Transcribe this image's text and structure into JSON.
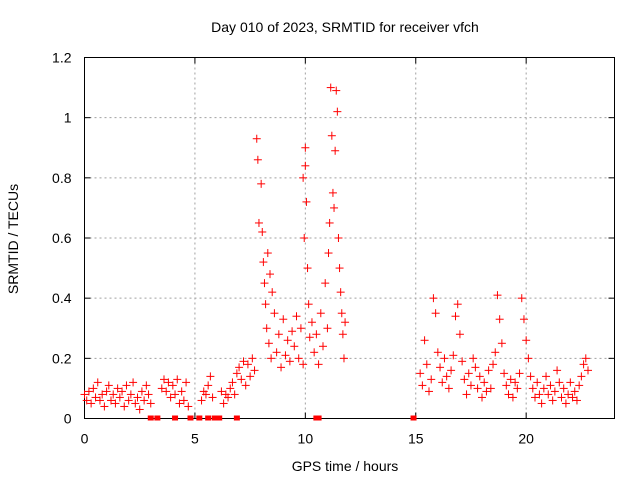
{
  "chart_data": {
    "type": "scatter",
    "title": "Day 010 of 2023, SRMTID for receiver vfch",
    "xlabel": "GPS time / hours",
    "ylabel": "SRMTID / TECUs",
    "xlim": [
      0,
      24
    ],
    "ylim": [
      0,
      1.2
    ],
    "grid": true,
    "marker": "+",
    "series_color": "#ff0000",
    "x_ticks": [
      0,
      5,
      10,
      15,
      20
    ],
    "y_ticks": [
      0,
      0.2,
      0.4,
      0.6,
      0.8,
      1,
      1.2
    ],
    "x_tick_labels": [
      "0",
      "5",
      "10",
      "15",
      "20"
    ],
    "y_tick_labels": [
      "0",
      "0.2",
      "0.4",
      "0.6",
      "0.8",
      "1",
      "1.2"
    ],
    "series": [
      {
        "name": "SRMTID",
        "points": [
          [
            0.0,
            0.08
          ],
          [
            0.1,
            0.06
          ],
          [
            0.2,
            0.09
          ],
          [
            0.3,
            0.05
          ],
          [
            0.4,
            0.1
          ],
          [
            0.5,
            0.07
          ],
          [
            0.6,
            0.12
          ],
          [
            0.7,
            0.06
          ],
          [
            0.8,
            0.08
          ],
          [
            0.9,
            0.04
          ],
          [
            1.0,
            0.09
          ],
          [
            1.1,
            0.11
          ],
          [
            1.2,
            0.06
          ],
          [
            1.3,
            0.08
          ],
          [
            1.4,
            0.05
          ],
          [
            1.5,
            0.1
          ],
          [
            1.6,
            0.07
          ],
          [
            1.7,
            0.09
          ],
          [
            1.8,
            0.04
          ],
          [
            1.9,
            0.11
          ],
          [
            2.0,
            0.06
          ],
          [
            2.1,
            0.08
          ],
          [
            2.2,
            0.12
          ],
          [
            2.3,
            0.05
          ],
          [
            2.4,
            0.07
          ],
          [
            2.5,
            0.03
          ],
          [
            2.6,
            0.09
          ],
          [
            2.7,
            0.06
          ],
          [
            2.8,
            0.11
          ],
          [
            2.9,
            0.08
          ],
          [
            3.0,
            0.05
          ],
          [
            3.5,
            0.1
          ],
          [
            3.6,
            0.13
          ],
          [
            3.7,
            0.09
          ],
          [
            3.8,
            0.12
          ],
          [
            3.9,
            0.07
          ],
          [
            4.0,
            0.11
          ],
          [
            4.1,
            0.08
          ],
          [
            4.2,
            0.13
          ],
          [
            4.3,
            0.05
          ],
          [
            4.4,
            0.09
          ],
          [
            4.5,
            0.06
          ],
          [
            4.6,
            0.12
          ],
          [
            4.7,
            0.04
          ],
          [
            5.3,
            0.06
          ],
          [
            5.4,
            0.09
          ],
          [
            5.5,
            0.08
          ],
          [
            5.6,
            0.11
          ],
          [
            5.7,
            0.14
          ],
          [
            5.8,
            0.07
          ],
          [
            6.2,
            0.09
          ],
          [
            6.3,
            0.05
          ],
          [
            6.4,
            0.08
          ],
          [
            6.5,
            0.07
          ],
          [
            6.6,
            0.1
          ],
          [
            6.7,
            0.12
          ],
          [
            6.8,
            0.08
          ],
          [
            6.9,
            0.15
          ],
          [
            7.0,
            0.17
          ],
          [
            7.1,
            0.13
          ],
          [
            7.2,
            0.19
          ],
          [
            7.3,
            0.11
          ],
          [
            7.4,
            0.18
          ],
          [
            7.5,
            0.14
          ],
          [
            7.6,
            0.2
          ],
          [
            7.7,
            0.16
          ],
          [
            7.8,
            0.93
          ],
          [
            7.85,
            0.86
          ],
          [
            7.9,
            0.65
          ],
          [
            8.0,
            0.78
          ],
          [
            8.05,
            0.62
          ],
          [
            8.1,
            0.52
          ],
          [
            8.15,
            0.45
          ],
          [
            8.2,
            0.38
          ],
          [
            8.25,
            0.3
          ],
          [
            8.3,
            0.55
          ],
          [
            8.35,
            0.25
          ],
          [
            8.4,
            0.48
          ],
          [
            8.45,
            0.2
          ],
          [
            8.5,
            0.42
          ],
          [
            8.6,
            0.35
          ],
          [
            8.7,
            0.22
          ],
          [
            8.8,
            0.28
          ],
          [
            8.9,
            0.17
          ],
          [
            9.0,
            0.33
          ],
          [
            9.1,
            0.21
          ],
          [
            9.2,
            0.26
          ],
          [
            9.3,
            0.19
          ],
          [
            9.4,
            0.29
          ],
          [
            9.5,
            0.24
          ],
          [
            9.6,
            0.34
          ],
          [
            9.7,
            0.2
          ],
          [
            9.8,
            0.3
          ],
          [
            9.9,
            0.18
          ],
          [
            9.9,
            0.8
          ],
          [
            9.95,
            0.6
          ],
          [
            10.0,
            0.9
          ],
          [
            10.0,
            0.84
          ],
          [
            10.05,
            0.72
          ],
          [
            10.1,
            0.5
          ],
          [
            10.15,
            0.38
          ],
          [
            10.2,
            0.27
          ],
          [
            10.3,
            0.32
          ],
          [
            10.4,
            0.22
          ],
          [
            10.5,
            0.28
          ],
          [
            10.6,
            0.18
          ],
          [
            10.7,
            0.35
          ],
          [
            10.8,
            0.24
          ],
          [
            10.9,
            0.45
          ],
          [
            11.0,
            0.3
          ],
          [
            11.05,
            0.55
          ],
          [
            11.1,
            0.65
          ],
          [
            11.15,
            1.1
          ],
          [
            11.2,
            0.94
          ],
          [
            11.25,
            0.75
          ],
          [
            11.3,
            0.7
          ],
          [
            11.35,
            0.89
          ],
          [
            11.4,
            1.09
          ],
          [
            11.45,
            1.02
          ],
          [
            11.5,
            0.6
          ],
          [
            11.55,
            0.5
          ],
          [
            11.6,
            0.42
          ],
          [
            11.65,
            0.35
          ],
          [
            11.7,
            0.28
          ],
          [
            11.75,
            0.2
          ],
          [
            11.8,
            0.32
          ],
          [
            15.2,
            0.15
          ],
          [
            15.3,
            0.11
          ],
          [
            15.4,
            0.26
          ],
          [
            15.5,
            0.18
          ],
          [
            15.6,
            0.09
          ],
          [
            15.7,
            0.13
          ],
          [
            15.8,
            0.4
          ],
          [
            15.9,
            0.35
          ],
          [
            16.0,
            0.22
          ],
          [
            16.1,
            0.17
          ],
          [
            16.2,
            0.12
          ],
          [
            16.3,
            0.2
          ],
          [
            16.4,
            0.14
          ],
          [
            16.5,
            0.1
          ],
          [
            16.6,
            0.16
          ],
          [
            16.7,
            0.21
          ],
          [
            16.8,
            0.34
          ],
          [
            16.9,
            0.38
          ],
          [
            17.0,
            0.28
          ],
          [
            17.1,
            0.19
          ],
          [
            17.2,
            0.13
          ],
          [
            17.3,
            0.08
          ],
          [
            17.4,
            0.15
          ],
          [
            17.5,
            0.11
          ],
          [
            17.6,
            0.2
          ],
          [
            17.7,
            0.17
          ],
          [
            17.8,
            0.1
          ],
          [
            17.9,
            0.14
          ],
          [
            18.0,
            0.07
          ],
          [
            18.1,
            0.12
          ],
          [
            18.2,
            0.09
          ],
          [
            18.3,
            0.16
          ],
          [
            18.4,
            0.1
          ],
          [
            18.5,
            0.18
          ],
          [
            18.6,
            0.22
          ],
          [
            18.7,
            0.41
          ],
          [
            18.8,
            0.33
          ],
          [
            18.9,
            0.25
          ],
          [
            19.0,
            0.15
          ],
          [
            19.1,
            0.11
          ],
          [
            19.2,
            0.08
          ],
          [
            19.3,
            0.13
          ],
          [
            19.4,
            0.07
          ],
          [
            19.5,
            0.12
          ],
          [
            19.6,
            0.1
          ],
          [
            19.7,
            0.15
          ],
          [
            19.8,
            0.4
          ],
          [
            19.9,
            0.33
          ],
          [
            20.0,
            0.26
          ],
          [
            20.1,
            0.2
          ],
          [
            20.2,
            0.14
          ],
          [
            20.3,
            0.1
          ],
          [
            20.4,
            0.07
          ],
          [
            20.5,
            0.12
          ],
          [
            20.6,
            0.08
          ],
          [
            20.7,
            0.05
          ],
          [
            20.8,
            0.1
          ],
          [
            20.9,
            0.14
          ],
          [
            21.0,
            0.08
          ],
          [
            21.1,
            0.11
          ],
          [
            21.2,
            0.06
          ],
          [
            21.3,
            0.09
          ],
          [
            21.4,
            0.16
          ],
          [
            21.5,
            0.12
          ],
          [
            21.6,
            0.07
          ],
          [
            21.7,
            0.1
          ],
          [
            21.8,
            0.05
          ],
          [
            21.9,
            0.08
          ],
          [
            22.0,
            0.12
          ],
          [
            22.1,
            0.07
          ],
          [
            22.2,
            0.09
          ],
          [
            22.3,
            0.06
          ],
          [
            22.4,
            0.11
          ],
          [
            22.5,
            0.14
          ],
          [
            22.6,
            0.18
          ],
          [
            22.7,
            0.2
          ],
          [
            22.8,
            0.16
          ]
        ]
      }
    ],
    "zero_markers_x": [
      3.0,
      3.3,
      4.1,
      4.8,
      5.2,
      5.6,
      5.9,
      6.1,
      6.9,
      10.5,
      10.6,
      14.9
    ]
  }
}
